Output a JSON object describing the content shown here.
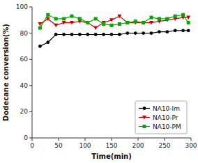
{
  "chart_data": {
    "type": "line",
    "xlabel": "Time(min)",
    "ylabel": "Dodecane conversion(%)",
    "x": [
      15,
      30,
      45,
      60,
      75,
      90,
      105,
      120,
      135,
      150,
      165,
      180,
      195,
      210,
      225,
      240,
      255,
      270,
      285,
      295
    ],
    "series": [
      {
        "name": "NA10-Im",
        "color": "#000000",
        "marker": "circle",
        "values": [
          70,
          73,
          79,
          79,
          79,
          79,
          79,
          79,
          79,
          79,
          79,
          80,
          80,
          80,
          80,
          81,
          81,
          82,
          82,
          82
        ]
      },
      {
        "name": "NA10-Pr",
        "color": "#cc0000",
        "marker": "triangle-down",
        "values": [
          87,
          91,
          86,
          88,
          88,
          89,
          88,
          84,
          88,
          90,
          93,
          88,
          88,
          88,
          88,
          89,
          90,
          91,
          92,
          92
        ]
      },
      {
        "name": "NA10-PM",
        "color": "#00aa00",
        "marker": "square",
        "values": [
          84,
          94,
          91,
          91,
          93,
          91,
          88,
          91,
          87,
          86,
          87,
          88,
          89,
          88,
          92,
          91,
          91,
          93,
          94,
          88
        ]
      }
    ],
    "xlim": [
      0,
      300
    ],
    "ylim": [
      0,
      100
    ],
    "xticks": [
      0,
      50,
      100,
      150,
      200,
      250,
      300
    ],
    "yticks": [
      0,
      20,
      40,
      60,
      80,
      100
    ],
    "grid": false,
    "legend": "lower right"
  }
}
